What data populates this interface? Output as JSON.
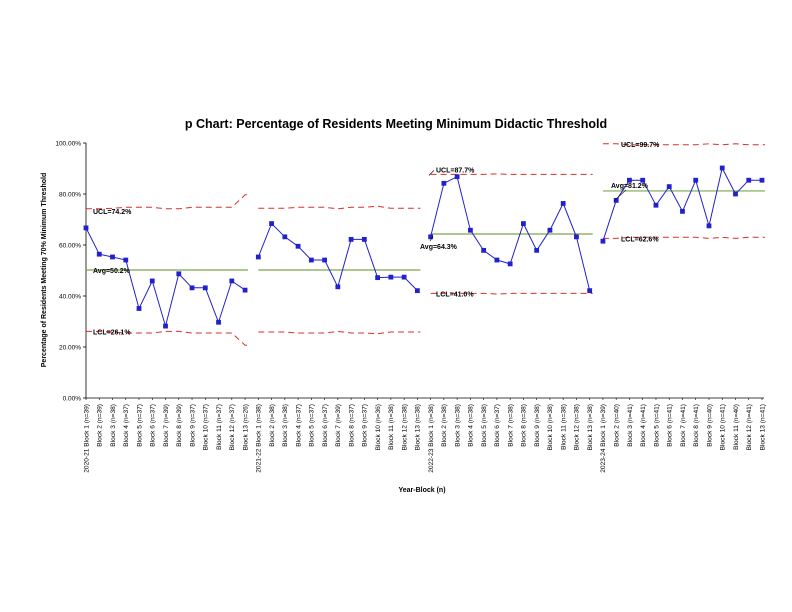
{
  "chart_data": {
    "type": "line",
    "title": "p Chart: Percentage of Residents Meeting Minimum Didactic Threshold",
    "xlabel": "Year-Block (n)",
    "ylabel": "Percentage of Residents Meeting 70% Minimum Threshold",
    "ylim": [
      0,
      1
    ],
    "yticks": [
      "0.00%",
      "20.00%",
      "40.00%",
      "60.00%",
      "80.00%",
      "100.00%"
    ],
    "grid": false,
    "colors": {
      "points": "#2222cc",
      "center": "#7aa84a",
      "limits": "#d8302a"
    },
    "categories": [
      "2020-21 Block 1 (n=39)",
      "Block 2 (n=39)",
      "Block 3 (n=38)",
      "Block 4 (n=37)",
      "Block 5 (n=37)",
      "Block 6 (n=37)",
      "Block 7 (n=39)",
      "Block 8 (n=39)",
      "Block 9 (n=37)",
      "Block 10 (n=37)",
      "Block 11 (n=37)",
      "Block 12 (n=37)",
      "Block 13 (n=26)",
      "2021-22 Block 1 (n=38)",
      "Block 2 (n=38)",
      "Block 3 (n=38)",
      "Block 4 (n=37)",
      "Block 5 (n=37)",
      "Block 6 (n=37)",
      "Block 7 (n=39)",
      "Block 8 (n=37)",
      "Block 9 (n=37)",
      "Block 10 (n=36)",
      "Block 11 (n=38)",
      "Block 12 (n=38)",
      "Block 13 (n=38)",
      "2022-23 Block 1 (n=38)",
      "Block 2 (n=38)",
      "Block 3 (n=38)",
      "Block 4 (n=38)",
      "Block 5 (n=38)",
      "Block 6 (n=37)",
      "Block 7 (n=38)",
      "Block 8 (n=38)",
      "Block 9 (n=38)",
      "Block 10 (n=38)",
      "Block 11 (n=38)",
      "Block 12 (n=38)",
      "Block 13 (n=38)",
      "2023-24 Block 1 (n=39)",
      "Block 2 (n=40)",
      "Block 3 (n=41)",
      "Block 4 (n=41)",
      "Block 5 (n=41)",
      "Block 6 (n=41)",
      "Block 7 (n=41)",
      "Block 8 (n=41)",
      "Block 9 (n=40)",
      "Block 10 (n=41)",
      "Block 11 (n=40)",
      "Block 12 (n=41)",
      "Block 13 (n=41)"
    ],
    "segments": [
      {
        "start": 0,
        "end": 12,
        "avg": 0.502,
        "avg_label": "Avg=50.2%",
        "ucl_label": "UCL=74.2%",
        "lcl_label": "LCL=26.1%",
        "values": [
          0.667,
          0.564,
          0.553,
          0.541,
          0.351,
          0.459,
          0.282,
          0.487,
          0.432,
          0.432,
          0.297,
          0.459,
          0.423
        ],
        "ucl": [
          0.742,
          0.742,
          0.744,
          0.748,
          0.748,
          0.748,
          0.742,
          0.742,
          0.748,
          0.748,
          0.748,
          0.748,
          0.797
        ],
        "lcl": [
          0.261,
          0.261,
          0.259,
          0.255,
          0.255,
          0.255,
          0.261,
          0.261,
          0.255,
          0.255,
          0.255,
          0.255,
          0.207
        ]
      },
      {
        "start": 13,
        "end": 25,
        "avg": 0.502,
        "values": [
          0.553,
          0.684,
          0.632,
          0.595,
          0.541,
          0.541,
          0.436,
          0.622,
          0.622,
          0.472,
          0.474,
          0.474,
          0.421
        ],
        "ucl": [
          0.744,
          0.744,
          0.744,
          0.748,
          0.748,
          0.748,
          0.742,
          0.748,
          0.748,
          0.752,
          0.744,
          0.744,
          0.744
        ],
        "lcl": [
          0.259,
          0.259,
          0.259,
          0.255,
          0.255,
          0.255,
          0.261,
          0.255,
          0.255,
          0.252,
          0.259,
          0.259,
          0.259
        ]
      },
      {
        "start": 26,
        "end": 38,
        "avg": 0.643,
        "avg_label": "Avg=64.3%",
        "ucl_label": "UCL=87.7%",
        "lcl_label": "LCL=41.0%",
        "values": [
          0.632,
          0.842,
          0.868,
          0.658,
          0.579,
          0.541,
          0.526,
          0.684,
          0.579,
          0.658,
          0.763,
          0.632,
          0.421
        ],
        "ucl": [
          0.877,
          0.877,
          0.877,
          0.877,
          0.877,
          0.879,
          0.877,
          0.877,
          0.877,
          0.877,
          0.877,
          0.877,
          0.877
        ],
        "lcl": [
          0.41,
          0.41,
          0.41,
          0.41,
          0.41,
          0.408,
          0.41,
          0.41,
          0.41,
          0.41,
          0.41,
          0.41,
          0.41
        ]
      },
      {
        "start": 39,
        "end": 51,
        "avg": 0.812,
        "avg_label": "Avg=81.2%",
        "ucl_label": "UCL=99.7%",
        "lcl_label": "LCL=62.6%",
        "values": [
          0.615,
          0.775,
          0.854,
          0.854,
          0.756,
          0.829,
          0.732,
          0.854,
          0.675,
          0.902,
          0.8,
          0.854,
          0.854
        ],
        "ucl": [
          0.997,
          0.997,
          0.993,
          0.993,
          0.993,
          0.993,
          0.993,
          0.993,
          0.997,
          0.993,
          0.997,
          0.993,
          0.993
        ],
        "lcl": [
          0.626,
          0.626,
          0.63,
          0.63,
          0.63,
          0.63,
          0.63,
          0.63,
          0.626,
          0.63,
          0.626,
          0.63,
          0.63
        ]
      }
    ]
  }
}
